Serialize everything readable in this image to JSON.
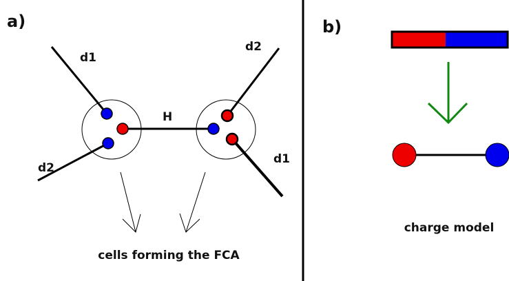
{
  "panel_a": {
    "label": "a)",
    "top_left_arm": "d1",
    "bottom_left_arm": "d2",
    "bond": "H",
    "top_right_arm": "d2",
    "bottom_right_arm": "d1",
    "caption": "cells forming the FCA"
  },
  "panel_b": {
    "label": "b)",
    "caption": "charge model"
  }
}
